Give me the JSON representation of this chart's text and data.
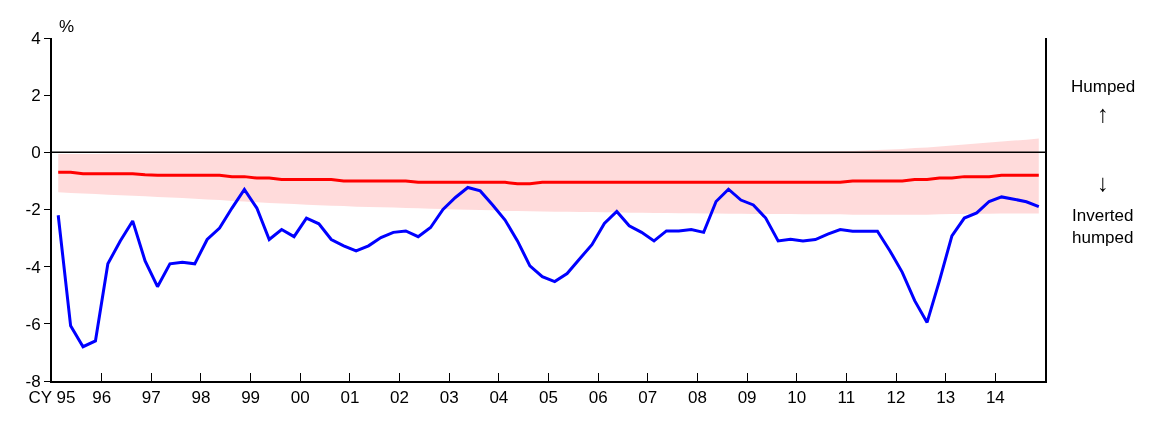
{
  "chart_data": {
    "type": "line",
    "ylabel": "%",
    "x": [
      1995.125,
      1995.375,
      1995.625,
      1995.875,
      1996.125,
      1996.375,
      1996.625,
      1996.875,
      1997.125,
      1997.375,
      1997.625,
      1997.875,
      1998.125,
      1998.375,
      1998.625,
      1998.875,
      1999.125,
      1999.375,
      1999.625,
      1999.875,
      2000.125,
      2000.375,
      2000.625,
      2000.875,
      2001.125,
      2001.375,
      2001.625,
      2001.875,
      2002.125,
      2002.375,
      2002.625,
      2002.875,
      2003.125,
      2003.375,
      2003.625,
      2003.875,
      2004.125,
      2004.375,
      2004.625,
      2004.875,
      2005.125,
      2005.375,
      2005.625,
      2005.875,
      2006.125,
      2006.375,
      2006.625,
      2006.875,
      2007.125,
      2007.375,
      2007.625,
      2007.875,
      2008.125,
      2008.375,
      2008.625,
      2008.875,
      2009.125,
      2009.375,
      2009.625,
      2009.875,
      2010.125,
      2010.375,
      2010.625,
      2010.875,
      2011.125,
      2011.375,
      2011.625,
      2011.875,
      2012.125,
      2012.375,
      2012.625,
      2012.875,
      2013.125,
      2013.375,
      2013.625,
      2013.875,
      2014.125,
      2014.375,
      2014.625,
      2014.875
    ],
    "series": [
      {
        "color": "#ff0000",
        "values": [
          -0.7,
          -0.7,
          -0.75,
          -0.75,
          -0.75,
          -0.75,
          -0.75,
          -0.78,
          -0.8,
          -0.8,
          -0.8,
          -0.8,
          -0.8,
          -0.8,
          -0.85,
          -0.85,
          -0.9,
          -0.9,
          -0.95,
          -0.95,
          -0.95,
          -0.95,
          -0.95,
          -1.0,
          -1.0,
          -1.0,
          -1.0,
          -1.0,
          -1.0,
          -1.05,
          -1.05,
          -1.05,
          -1.05,
          -1.05,
          -1.05,
          -1.05,
          -1.05,
          -1.1,
          -1.1,
          -1.05,
          -1.05,
          -1.05,
          -1.05,
          -1.05,
          -1.05,
          -1.05,
          -1.05,
          -1.05,
          -1.05,
          -1.05,
          -1.05,
          -1.05,
          -1.05,
          -1.05,
          -1.05,
          -1.05,
          -1.05,
          -1.05,
          -1.05,
          -1.05,
          -1.05,
          -1.05,
          -1.05,
          -1.05,
          -1.0,
          -1.0,
          -1.0,
          -1.0,
          -1.0,
          -0.95,
          -0.95,
          -0.9,
          -0.9,
          -0.85,
          -0.85,
          -0.85,
          -0.8,
          -0.8,
          -0.8,
          -0.8
        ],
        "lower": [
          -1.4,
          -1.42,
          -1.44,
          -1.46,
          -1.48,
          -1.5,
          -1.52,
          -1.54,
          -1.56,
          -1.58,
          -1.6,
          -1.62,
          -1.65,
          -1.67,
          -1.7,
          -1.72,
          -1.75,
          -1.77,
          -1.79,
          -1.81,
          -1.83,
          -1.85,
          -1.87,
          -1.88,
          -1.9,
          -1.91,
          -1.92,
          -1.93,
          -1.95,
          -1.96,
          -1.97,
          -1.98,
          -2.0,
          -2.01,
          -2.02,
          -2.03,
          -2.05,
          -2.05,
          -2.06,
          -2.07,
          -2.08,
          -2.08,
          -2.09,
          -2.09,
          -2.1,
          -2.1,
          -2.11,
          -2.11,
          -2.12,
          -2.12,
          -2.13,
          -2.13,
          -2.14,
          -2.14,
          -2.15,
          -2.15,
          -2.16,
          -2.16,
          -2.16,
          -2.16,
          -2.17,
          -2.17,
          -2.17,
          -2.17,
          -2.18,
          -2.18,
          -2.18,
          -2.18,
          -2.18,
          -2.18,
          -2.18,
          -2.17,
          -2.16,
          -2.16,
          -2.15,
          -2.15,
          -2.14,
          -2.14,
          -2.14,
          -2.14
        ],
        "upper": [
          -0.06,
          -0.06,
          -0.06,
          -0.06,
          -0.05,
          -0.05,
          -0.05,
          -0.05,
          -0.04,
          -0.04,
          -0.04,
          -0.04,
          -0.03,
          -0.03,
          -0.03,
          -0.03,
          -0.03,
          -0.03,
          -0.03,
          -0.03,
          -0.02,
          -0.02,
          -0.02,
          -0.02,
          -0.02,
          -0.02,
          -0.02,
          -0.02,
          -0.01,
          -0.01,
          -0.01,
          -0.01,
          0,
          0,
          0,
          0,
          0,
          0,
          0,
          0,
          0,
          0,
          0,
          0,
          0,
          0,
          0,
          0,
          0,
          0,
          0,
          0,
          0,
          0,
          0,
          0,
          0,
          0,
          0,
          0,
          0.01,
          0.02,
          0.03,
          0.04,
          0.05,
          0.06,
          0.08,
          0.1,
          0.12,
          0.15,
          0.17,
          0.2,
          0.24,
          0.27,
          0.31,
          0.34,
          0.38,
          0.41,
          0.44,
          0.48
        ]
      },
      {
        "color": "#0000ff",
        "values": [
          -2.2,
          -6.07,
          -6.8,
          -6.6,
          -3.9,
          -3.1,
          -2.4,
          -3.8,
          -4.7,
          -3.9,
          -3.85,
          -3.9,
          -3.05,
          -2.65,
          -1.95,
          -1.3,
          -1.95,
          -3.05,
          -2.7,
          -2.95,
          -2.3,
          -2.5,
          -3.05,
          -3.27,
          -3.45,
          -3.27,
          -2.98,
          -2.8,
          -2.75,
          -2.95,
          -2.63,
          -2.0,
          -1.58,
          -1.23,
          -1.35,
          -1.84,
          -2.37,
          -3.1,
          -3.97,
          -4.35,
          -4.52,
          -4.24,
          -3.73,
          -3.23,
          -2.49,
          -2.07,
          -2.57,
          -2.8,
          -3.1,
          -2.75,
          -2.75,
          -2.7,
          -2.8,
          -1.72,
          -1.29,
          -1.67,
          -1.84,
          -2.3,
          -3.1,
          -3.04,
          -3.1,
          -3.05,
          -2.86,
          -2.7,
          -2.76,
          -2.76,
          -2.76,
          -3.44,
          -4.2,
          -5.19,
          -5.95,
          -4.49,
          -2.92,
          -2.3,
          -2.12,
          -1.72,
          -1.56,
          -1.64,
          -1.73,
          -1.9
        ]
      }
    ],
    "xlim": [
      1995,
      2015
    ],
    "xticks": [
      {
        "value": 1995,
        "label": "CY 95"
      },
      {
        "value": 1996,
        "label": "96"
      },
      {
        "value": 1997,
        "label": "97"
      },
      {
        "value": 1998,
        "label": "98"
      },
      {
        "value": 1999,
        "label": "99"
      },
      {
        "value": 2000,
        "label": "00"
      },
      {
        "value": 2001,
        "label": "01"
      },
      {
        "value": 2002,
        "label": "02"
      },
      {
        "value": 2003,
        "label": "03"
      },
      {
        "value": 2004,
        "label": "04"
      },
      {
        "value": 2005,
        "label": "05"
      },
      {
        "value": 2006,
        "label": "06"
      },
      {
        "value": 2007,
        "label": "07"
      },
      {
        "value": 2008,
        "label": "08"
      },
      {
        "value": 2009,
        "label": "09"
      },
      {
        "value": 2010,
        "label": "10"
      },
      {
        "value": 2011,
        "label": "11"
      },
      {
        "value": 2012,
        "label": "12"
      },
      {
        "value": 2013,
        "label": "13"
      },
      {
        "value": 2014,
        "label": "14"
      }
    ],
    "ylim": [
      -8,
      4
    ],
    "yticks": [
      -8,
      -6,
      -4,
      -2,
      0,
      2,
      4
    ],
    "ref_lines": [
      {
        "axis": "y",
        "value": 0,
        "color": "#000000"
      }
    ],
    "annotations": [
      "Humped",
      "↑",
      "↓",
      "Inverted humped"
    ],
    "grid": false,
    "marker": "none",
    "line_style": "solid"
  }
}
